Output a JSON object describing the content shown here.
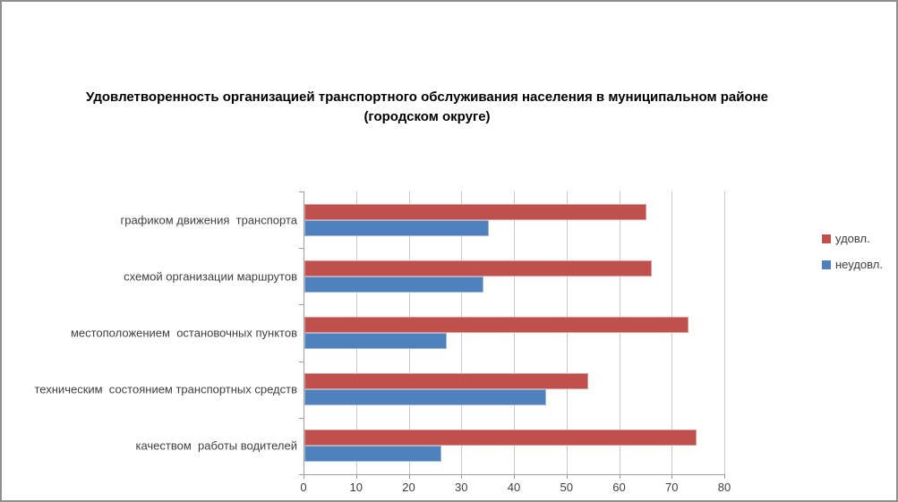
{
  "window": {
    "background": "#ffffff",
    "border_color": "#8f8f8f"
  },
  "chart_data": {
    "type": "bar",
    "orientation": "horizontal",
    "title": "Удовлетворенность организацией транспортного обслуживания населения в муниципальном районе\n(городском округе)",
    "categories": [
      "графиком движения  транспорта",
      "схемой организации маршрутов",
      "местоположением  остановочных пунктов",
      "техническим  состоянием транспортных средств",
      "качеством  работы водителей"
    ],
    "series": [
      {
        "name": "удовл.",
        "color": "#C0504D",
        "border_color": "#D99795",
        "values": [
          65,
          66,
          73,
          54,
          74.5
        ]
      },
      {
        "name": "неудовл.",
        "color": "#4F81BD",
        "border_color": "#A0B9DA",
        "values": [
          35,
          34,
          27,
          46,
          26
        ]
      }
    ],
    "x_axis": {
      "min": 0,
      "max": 80,
      "step": 10,
      "tick_labels": [
        "0",
        "10",
        "20",
        "30",
        "40",
        "50",
        "60",
        "70",
        "80"
      ]
    },
    "grid": true,
    "gridline_color": "#c9c9c9",
    "axis_color": "#9d9d9d",
    "text_color": "#3f3f3f",
    "title_color": "#000000",
    "legend_position": "right"
  }
}
